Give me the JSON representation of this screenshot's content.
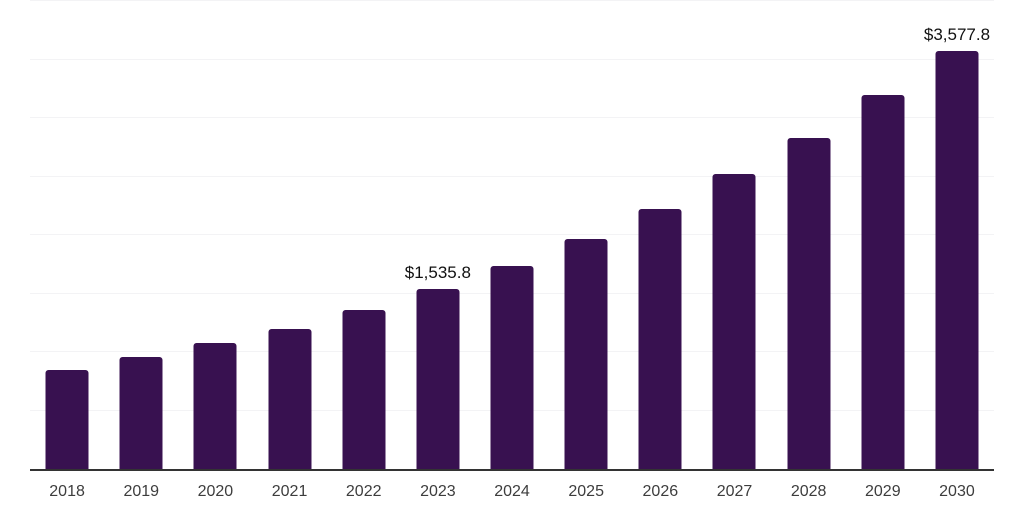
{
  "chart_data": {
    "type": "bar",
    "title": "",
    "xlabel": "",
    "ylabel": "",
    "categories": [
      "2018",
      "2019",
      "2020",
      "2021",
      "2022",
      "2023",
      "2024",
      "2025",
      "2026",
      "2027",
      "2028",
      "2029",
      "2030"
    ],
    "values": [
      850,
      955,
      1082,
      1196,
      1358,
      1535.8,
      1736,
      1970,
      2226,
      2520,
      2832,
      3196,
      3577.8
    ],
    "data_labels": {
      "2023": "$1,535.8",
      "2030": "$3,577.8"
    },
    "ylim": [
      0,
      4000
    ],
    "gridline_step": 500,
    "grid": true,
    "legend_position": "none",
    "colors": {
      "bar": "#381150",
      "gridline": "#f3f3f5",
      "axis_line": "#333333",
      "tick_label": "#3d3d3d",
      "data_label": "#111111",
      "background": "#ffffff"
    }
  }
}
